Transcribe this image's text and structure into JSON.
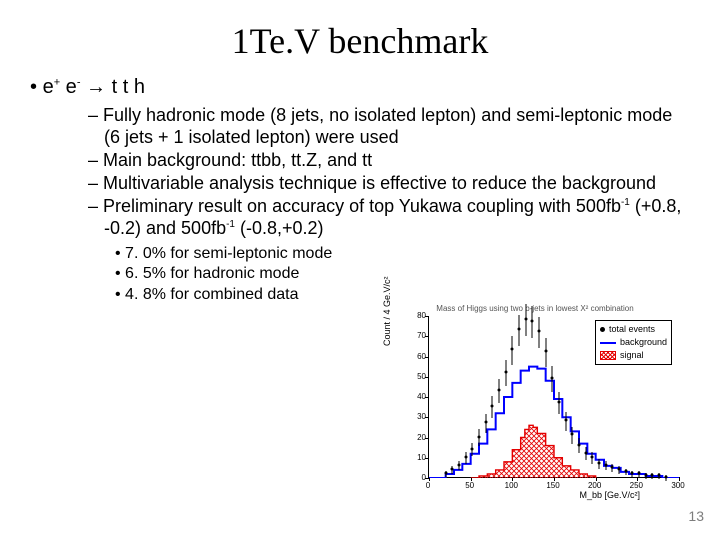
{
  "title": "1Te.V benchmark",
  "mainBullet": {
    "prefix": "e",
    "sup1": "+",
    "mid": " e",
    "sup2": "-",
    "arrow": " → t t h"
  },
  "subs": [
    "Fully hadronic mode (8 jets, no isolated lepton)  and semi-leptonic mode (6 jets + 1 isolated lepton) were used",
    "Main background: ttbb, tt.Z, and tt",
    "Multivariable analysis technique is effective to reduce the background"
  ],
  "sub4": {
    "a": "Preliminary result on accuracy of top Yukawa coupling with 500fb",
    "sup1": "-1",
    "b": " (+0.8, -0.2) and 500fb",
    "sup2": "-1",
    "c": " (-0.8,+0.2)"
  },
  "sub2s": [
    "7. 0% for semi-leptonic mode",
    "6. 5% for hadronic mode",
    "4. 8% for combined data"
  ],
  "pageNum": "13",
  "chart": {
    "title": "Mass of Higgs using two b-jets in lowest X² combination",
    "ylabel": "Count / 4 Ge.V/c²",
    "xlabel": "M_bb [Ge.V/c²]",
    "xlim": [
      0,
      300
    ],
    "ylim": [
      0,
      80
    ],
    "xticks": [
      0,
      50,
      100,
      150,
      200,
      250,
      300
    ],
    "yticks": [
      0,
      10,
      20,
      30,
      40,
      50,
      60,
      70,
      80
    ],
    "legend": [
      {
        "label": "total events",
        "type": "dot"
      },
      {
        "label": "background",
        "type": "line",
        "color": "#0000ff"
      },
      {
        "label": "signal",
        "type": "hatch",
        "color": "#e40000"
      }
    ],
    "colors": {
      "background_hist": "#0000ff",
      "signal_hist": "#e40000",
      "total_points": "#000000",
      "box_bg": "#ffffff"
    },
    "background_steps": [
      [
        0,
        0
      ],
      [
        20,
        2
      ],
      [
        30,
        4
      ],
      [
        40,
        7
      ],
      [
        50,
        12
      ],
      [
        60,
        17
      ],
      [
        70,
        24
      ],
      [
        80,
        32
      ],
      [
        90,
        40
      ],
      [
        100,
        47
      ],
      [
        110,
        53
      ],
      [
        120,
        55
      ],
      [
        130,
        54
      ],
      [
        140,
        48
      ],
      [
        150,
        39
      ],
      [
        160,
        30
      ],
      [
        170,
        23
      ],
      [
        180,
        17
      ],
      [
        190,
        12
      ],
      [
        200,
        9
      ],
      [
        210,
        6
      ],
      [
        220,
        5
      ],
      [
        230,
        3
      ],
      [
        240,
        2
      ],
      [
        250,
        2
      ],
      [
        260,
        1
      ],
      [
        270,
        1
      ],
      [
        280,
        0
      ],
      [
        300,
        0
      ]
    ],
    "signal_steps": [
      [
        50,
        0
      ],
      [
        60,
        1
      ],
      [
        70,
        2
      ],
      [
        80,
        4
      ],
      [
        90,
        8
      ],
      [
        100,
        14
      ],
      [
        110,
        20
      ],
      [
        115,
        24
      ],
      [
        120,
        26
      ],
      [
        125,
        25
      ],
      [
        130,
        22
      ],
      [
        140,
        16
      ],
      [
        150,
        10
      ],
      [
        160,
        6
      ],
      [
        170,
        4
      ],
      [
        180,
        2
      ],
      [
        190,
        1
      ],
      [
        200,
        0
      ]
    ],
    "total_points": [
      [
        20,
        2
      ],
      [
        28,
        4
      ],
      [
        36,
        6
      ],
      [
        44,
        10
      ],
      [
        52,
        14
      ],
      [
        60,
        20
      ],
      [
        68,
        27
      ],
      [
        76,
        35
      ],
      [
        84,
        43
      ],
      [
        92,
        52
      ],
      [
        100,
        63
      ],
      [
        108,
        73
      ],
      [
        116,
        78
      ],
      [
        124,
        77
      ],
      [
        132,
        72
      ],
      [
        140,
        62
      ],
      [
        148,
        49
      ],
      [
        156,
        37
      ],
      [
        164,
        28
      ],
      [
        172,
        21
      ],
      [
        180,
        16
      ],
      [
        188,
        12
      ],
      [
        196,
        10
      ],
      [
        204,
        7
      ],
      [
        212,
        6
      ],
      [
        220,
        5
      ],
      [
        228,
        4
      ],
      [
        236,
        3
      ],
      [
        244,
        2
      ],
      [
        252,
        2
      ],
      [
        260,
        1
      ],
      [
        268,
        1
      ],
      [
        276,
        1
      ],
      [
        284,
        0
      ]
    ]
  }
}
